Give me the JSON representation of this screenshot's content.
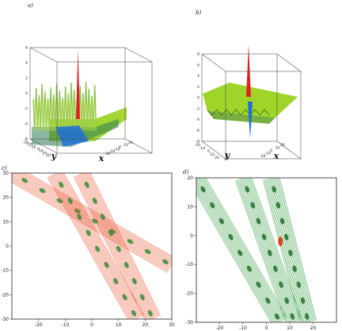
{
  "figure": {
    "panels": [
      {
        "label": "a)"
      },
      {
        "label": "b)"
      },
      {
        "label": "c)"
      },
      {
        "label": "d)"
      }
    ]
  },
  "chart_data": [
    {
      "type": "surface",
      "panel": "a)",
      "x_label": "x",
      "y_label": "y",
      "x_ticks": [
        "20",
        "10",
        "0",
        "-10",
        "-20",
        "-30"
      ],
      "y_ticks": [
        "-30",
        "-20",
        "-10",
        "0",
        "10",
        "20",
        "30"
      ],
      "z_ticks": [
        "-6",
        "-4",
        "-2",
        "0",
        "2",
        "4",
        "6"
      ],
      "zlim": [
        -6,
        6
      ],
      "colors": {
        "high": "#e02020",
        "mid": "#9ad21e",
        "low": "#1e6fd9"
      }
    },
    {
      "type": "surface",
      "panel": "b)",
      "x_label": "x",
      "y_label": "y",
      "x_ticks": [
        "20",
        "10",
        "0",
        "-10",
        "-20"
      ],
      "y_ticks": [
        "-20",
        "-10",
        "0",
        "10",
        "20"
      ],
      "z_ticks": [
        "-8",
        "-6",
        "-4",
        "-2",
        "0",
        "2",
        "4",
        "6",
        "8"
      ],
      "zlim": [
        -8,
        8
      ],
      "colors": {
        "high": "#e02020",
        "mid": "#9ad21e",
        "low": "#1e6fd9"
      }
    },
    {
      "type": "contour",
      "panel": "c)",
      "xlim": [
        -30,
        30
      ],
      "ylim": [
        -30,
        30
      ],
      "x_ticks": [
        "-20",
        "-10",
        "0",
        "10",
        "20",
        "30"
      ],
      "y_ticks": [
        "30",
        "20",
        "10",
        "0",
        "-10",
        "-20",
        "-30"
      ],
      "bands": [
        {
          "x1": -30,
          "y1": 30,
          "x2": 30,
          "y2": -8,
          "color": "#e8502a"
        },
        {
          "x1": -14,
          "y1": 30,
          "x2": 17,
          "y2": -30,
          "color": "#e8502a"
        },
        {
          "x1": -4,
          "y1": 30,
          "x2": 23,
          "y2": -30,
          "color": "#e8502a"
        }
      ],
      "colors": {
        "line": "#e8502a",
        "core": "#3a8a3a"
      }
    },
    {
      "type": "contour",
      "panel": "d)",
      "xlim": [
        -30,
        30
      ],
      "ylim": [
        -30,
        20
      ],
      "x_ticks": [
        "-20",
        "-10",
        "0",
        "10",
        "20"
      ],
      "y_ticks": [
        "20",
        "10",
        "0",
        "-10",
        "-20",
        "-30"
      ],
      "bands": [
        {
          "x1": -30,
          "y1": 20,
          "x2": 6,
          "y2": -30,
          "color": "#2e9a3a"
        },
        {
          "x1": -10,
          "y1": 20,
          "x2": 12,
          "y2": -30,
          "color": "#2e9a3a"
        },
        {
          "x1": 2,
          "y1": 20,
          "x2": 18,
          "y2": -30,
          "color": "#2e9a3a"
        }
      ],
      "colors": {
        "line": "#2e9a3a",
        "core": "#1f6f2a",
        "peak": "#d84a22"
      }
    }
  ]
}
